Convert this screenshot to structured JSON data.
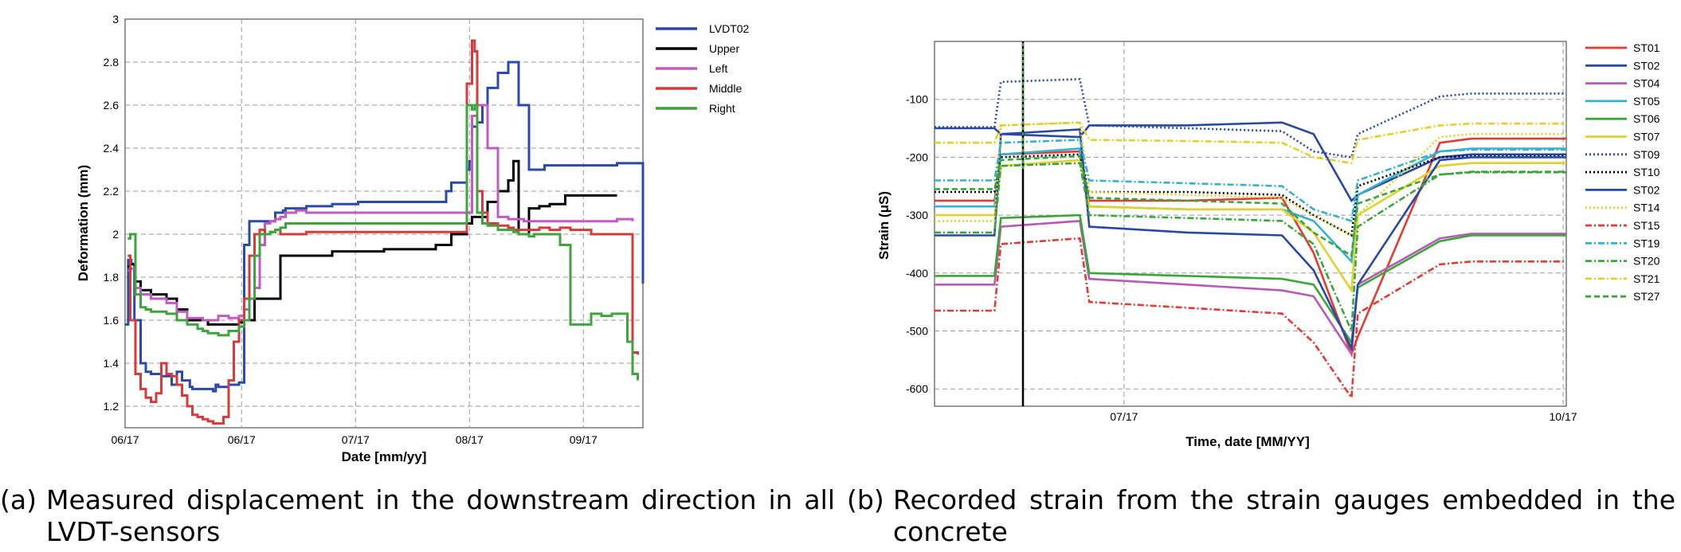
{
  "chart_data": [
    {
      "type": "line",
      "xlabel": "Date [mm/yy]",
      "ylabel": "Deformation (mm)",
      "xticks": [
        "06/17",
        "06/17",
        "07/17",
        "08/17",
        "09/17"
      ],
      "xlim": [
        0,
        100
      ],
      "ylim": [
        1.1,
        3
      ],
      "yticks": [
        1.2,
        1.4,
        1.6,
        1.8,
        2,
        2.2,
        2.4,
        2.6,
        2.8,
        3
      ],
      "grid": true,
      "legend_position": "right",
      "series": [
        {
          "name": "LVDT02",
          "color": "#2b4aa8",
          "x": [
            0,
            0.6,
            1.2,
            1.8,
            3,
            4,
            5,
            7,
            9,
            10,
            11,
            12.5,
            13,
            16,
            17,
            17.5,
            18,
            20,
            22,
            23,
            24,
            29,
            30,
            30.5,
            31,
            35,
            40,
            45,
            50,
            55,
            57,
            59,
            61,
            62,
            63,
            66,
            66.5,
            67,
            68,
            69,
            70,
            72,
            74,
            76,
            78,
            79,
            80,
            81,
            82,
            83,
            85,
            90,
            95,
            100
          ],
          "y": [
            1.58,
            1.88,
            1.86,
            1.6,
            1.4,
            1.36,
            1.35,
            1.34,
            1.3,
            1.36,
            1.32,
            1.29,
            1.28,
            1.28,
            1.27,
            1.3,
            1.29,
            1.3,
            1.31,
            1.95,
            2.06,
            2.1,
            2.1,
            2.11,
            2.12,
            2.13,
            2.14,
            2.15,
            2.15,
            2.15,
            2.15,
            2.15,
            2.15,
            2.2,
            2.24,
            2.3,
            2.34,
            2.5,
            2.52,
            2.6,
            2.68,
            2.75,
            2.8,
            2.6,
            2.3,
            2.3,
            2.3,
            2.32,
            2.32,
            2.32,
            2.32,
            2.32,
            2.33,
            1.77
          ]
        },
        {
          "name": "Upper",
          "color": "#000000",
          "x": [
            0.5,
            1,
            2,
            3,
            5,
            8,
            10,
            12,
            15,
            16,
            17,
            20,
            22,
            23,
            25,
            30,
            40,
            50,
            60,
            63,
            66,
            67,
            70,
            72,
            74,
            75,
            76,
            78,
            80,
            82,
            85,
            90,
            95
          ],
          "y": [
            1.85,
            1.86,
            1.78,
            1.74,
            1.72,
            1.7,
            1.65,
            1.6,
            1.6,
            1.58,
            1.58,
            1.58,
            1.59,
            1.6,
            1.7,
            1.9,
            1.92,
            1.93,
            1.95,
            2.0,
            2.05,
            2.08,
            2.15,
            2.2,
            2.25,
            2.34,
            2.0,
            2.12,
            2.13,
            2.14,
            2.18,
            2.18,
            2.18
          ]
        },
        {
          "name": "Left",
          "color": "#c25bc1",
          "x": [
            0.5,
            1,
            2,
            3,
            5,
            8,
            10,
            12,
            15,
            18,
            19,
            20,
            21,
            22,
            23,
            24,
            25,
            26,
            27,
            28,
            29,
            30,
            31,
            33,
            35,
            66,
            67,
            68,
            70,
            72,
            74,
            76,
            77,
            78,
            80,
            82,
            85,
            88,
            90,
            93,
            95,
            98
          ],
          "y": [
            1.83,
            1.84,
            1.75,
            1.72,
            1.7,
            1.68,
            1.64,
            1.61,
            1.6,
            1.62,
            1.62,
            1.61,
            1.61,
            1.62,
            1.65,
            1.7,
            1.75,
            1.95,
            2.05,
            2.06,
            2.07,
            2.08,
            2.1,
            2.11,
            2.1,
            2.1,
            2.55,
            2.6,
            2.4,
            2.08,
            2.07,
            2.07,
            2.06,
            2.06,
            2.06,
            2.06,
            2.06,
            2.06,
            2.06,
            2.06,
            2.07,
            2.06
          ]
        },
        {
          "name": "Middle",
          "color": "#d63b3b",
          "x": [
            0.5,
            1,
            2,
            3,
            4,
            5,
            6,
            7,
            8,
            9,
            10,
            11,
            12,
            13,
            14,
            15,
            16,
            17,
            18,
            19,
            20,
            21,
            22,
            23,
            24,
            25,
            26,
            27,
            28,
            29,
            30,
            35,
            66,
            67,
            67.5,
            68,
            69,
            70,
            72,
            74,
            75,
            76,
            78,
            80,
            82,
            84,
            86,
            90,
            95,
            98,
            99
          ],
          "y": [
            1.9,
            1.6,
            1.35,
            1.28,
            1.24,
            1.22,
            1.26,
            1.4,
            1.35,
            1.34,
            1.3,
            1.25,
            1.2,
            1.16,
            1.15,
            1.14,
            1.13,
            1.12,
            1.12,
            1.15,
            1.32,
            1.5,
            1.6,
            1.7,
            1.9,
            2.0,
            2.02,
            2.0,
            2.01,
            2.02,
            2.0,
            2.01,
            2.7,
            2.9,
            2.85,
            2.2,
            2.1,
            2.05,
            2.04,
            2.03,
            2.02,
            2.02,
            2.02,
            2.03,
            2.02,
            2.03,
            2.02,
            2.0,
            2.0,
            1.45,
            1.44
          ]
        },
        {
          "name": "Right",
          "color": "#3fa33f",
          "x": [
            0.5,
            1,
            2,
            3,
            4,
            5,
            8,
            10,
            12,
            14,
            15,
            16,
            17,
            18,
            20,
            22,
            23,
            24,
            25,
            26,
            27,
            28,
            29,
            30,
            31,
            66,
            67,
            67.5,
            68,
            69,
            70,
            72,
            74,
            75,
            76,
            77,
            78,
            79,
            80,
            82,
            84,
            86,
            88,
            90,
            92,
            94,
            96,
            97,
            98,
            99
          ],
          "y": [
            1.98,
            2.0,
            1.72,
            1.66,
            1.65,
            1.64,
            1.63,
            1.6,
            1.58,
            1.56,
            1.55,
            1.54,
            1.54,
            1.53,
            1.55,
            1.57,
            1.6,
            1.7,
            1.9,
            2.0,
            2.0,
            2.01,
            2.02,
            2.03,
            2.05,
            2.6,
            2.58,
            2.6,
            2.1,
            2.05,
            2.04,
            2.02,
            2.02,
            2.01,
            2.0,
            2.0,
            1.99,
            2.0,
            2.0,
            2.0,
            1.95,
            1.58,
            1.58,
            1.63,
            1.62,
            1.63,
            1.63,
            1.5,
            1.35,
            1.32
          ]
        }
      ]
    },
    {
      "type": "line",
      "xlabel": "Time, date [MM/YY]",
      "ylabel": "Strain (μS)",
      "xticks": [
        "07/17",
        "10/17"
      ],
      "xlim": [
        0,
        100
      ],
      "ylim": [
        -630,
        0
      ],
      "yticks": [
        -100,
        -200,
        -300,
        -400,
        -500,
        -600
      ],
      "grid": true,
      "legend_position": "right",
      "vertical_marker": 14,
      "series": [
        {
          "name": "ST01",
          "color": "#e23b33",
          "dash": "solid",
          "v": [
            -275,
            -275,
            -195,
            -190,
            -275,
            -275,
            -270,
            -365,
            -540,
            -510,
            -175,
            -168,
            -168
          ]
        },
        {
          "name": "ST02",
          "color": "#2848a6",
          "dash": "solid",
          "v": [
            -150,
            -150,
            -160,
            -165,
            -145,
            -145,
            -140,
            -160,
            -275,
            -265,
            -200,
            -195,
            -195
          ]
        },
        {
          "name": "ST04",
          "color": "#b65ab4",
          "dash": "solid",
          "v": [
            -420,
            -420,
            -320,
            -310,
            -410,
            -420,
            -430,
            -440,
            -540,
            -420,
            -340,
            -332,
            -332
          ]
        },
        {
          "name": "ST05",
          "color": "#36b1cd",
          "dash": "solid",
          "v": [
            -285,
            -285,
            -195,
            -185,
            -285,
            -290,
            -290,
            -310,
            -380,
            -265,
            -190,
            -185,
            -185
          ]
        },
        {
          "name": "ST06",
          "color": "#3aa63a",
          "dash": "solid",
          "v": [
            -405,
            -405,
            -305,
            -300,
            -400,
            -405,
            -410,
            -420,
            -520,
            -425,
            -345,
            -335,
            -335
          ]
        },
        {
          "name": "ST07",
          "color": "#e0d12c",
          "dash": "solid",
          "v": [
            -300,
            -300,
            -215,
            -205,
            -285,
            -290,
            -290,
            -330,
            -430,
            -300,
            -215,
            -210,
            -210
          ]
        },
        {
          "name": "ST09",
          "color": "#2848a6",
          "dash": "dotted",
          "v": [
            -148,
            -148,
            -70,
            -65,
            -145,
            -150,
            -155,
            -190,
            -200,
            -160,
            -95,
            -90,
            -90
          ]
        },
        {
          "name": "ST10",
          "color": "#000000",
          "dash": "dotted",
          "v": [
            -260,
            -260,
            -200,
            -195,
            -260,
            -260,
            -265,
            -300,
            -335,
            -250,
            -200,
            -198,
            -198
          ]
        },
        {
          "name": "ST02",
          "color": "#2848a6",
          "dash": "solid",
          "v": [
            -335,
            -335,
            -160,
            -152,
            -320,
            -330,
            -335,
            -395,
            -530,
            -420,
            -205,
            -200,
            -200
          ]
        },
        {
          "name": "ST14",
          "color": "#e0d12c",
          "dash": "dotted",
          "v": [
            -310,
            -310,
            -145,
            -140,
            -260,
            -265,
            -270,
            -300,
            -335,
            -300,
            -165,
            -160,
            -160
          ]
        },
        {
          "name": "ST15",
          "color": "#e23b33",
          "dash": "dashdot",
          "v": [
            -465,
            -465,
            -350,
            -340,
            -450,
            -460,
            -470,
            -520,
            -615,
            -470,
            -385,
            -380,
            -380
          ]
        },
        {
          "name": "ST19",
          "color": "#36b1cd",
          "dash": "dashdot",
          "v": [
            -240,
            -240,
            -175,
            -170,
            -240,
            -245,
            -250,
            -290,
            -310,
            -240,
            -190,
            -187,
            -187
          ]
        },
        {
          "name": "ST20",
          "color": "#3aa63a",
          "dash": "dashdot",
          "v": [
            -330,
            -330,
            -215,
            -210,
            -300,
            -305,
            -310,
            -350,
            -500,
            -320,
            -230,
            -225,
            -225
          ]
        },
        {
          "name": "ST21",
          "color": "#e0d12c",
          "dash": "dashdot",
          "v": [
            -175,
            -175,
            -145,
            -140,
            -170,
            -172,
            -175,
            -200,
            -210,
            -170,
            -145,
            -142,
            -142
          ]
        },
        {
          "name": "ST27",
          "color": "#3aa63a",
          "dash": "dashed",
          "v": [
            -255,
            -255,
            -205,
            -198,
            -270,
            -275,
            -280,
            -330,
            -370,
            -280,
            -230,
            -226,
            -226
          ]
        }
      ],
      "x": [
        0,
        9.5,
        10.5,
        23,
        24.5,
        40,
        55,
        60,
        66,
        67,
        80,
        85,
        100
      ]
    }
  ],
  "captions": {
    "a_label": "(a)",
    "a_text": "Measured displacement in the downstream direction in all LVDT-sensors",
    "b_label": "(b)",
    "b_text": "Recorded strain from the strain gauges embedded in the concrete"
  }
}
